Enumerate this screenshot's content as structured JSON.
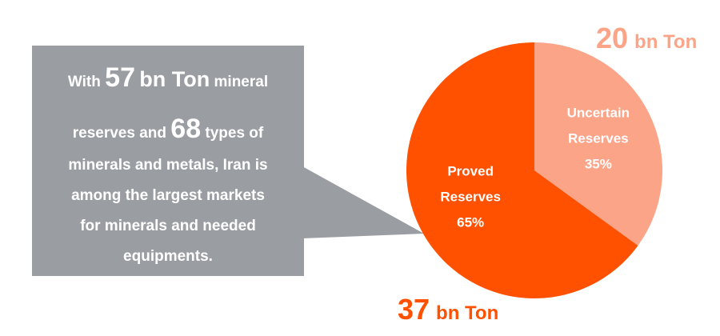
{
  "callout": {
    "line1": [
      "With",
      "57",
      "bn Ton",
      "mineral"
    ],
    "line2": [
      "reserves and",
      "68",
      "types of"
    ],
    "lines": [
      "minerals and metals, Iran is",
      "among the largest markets",
      "for minerals and needed",
      "equipments."
    ]
  },
  "chart_data": {
    "type": "pie",
    "categories": [
      "Uncertain Reserves",
      "Proved Reserves"
    ],
    "values": [
      35,
      65
    ],
    "value_labels": [
      "35%",
      "65%"
    ],
    "colors": [
      "#fba488",
      "#ff5100"
    ],
    "annotations": [
      {
        "value": 20,
        "unit": "bn Ton",
        "color": "#fba488"
      },
      {
        "value": 37,
        "unit": "bn Ton",
        "color": "#ff5100"
      }
    ]
  }
}
